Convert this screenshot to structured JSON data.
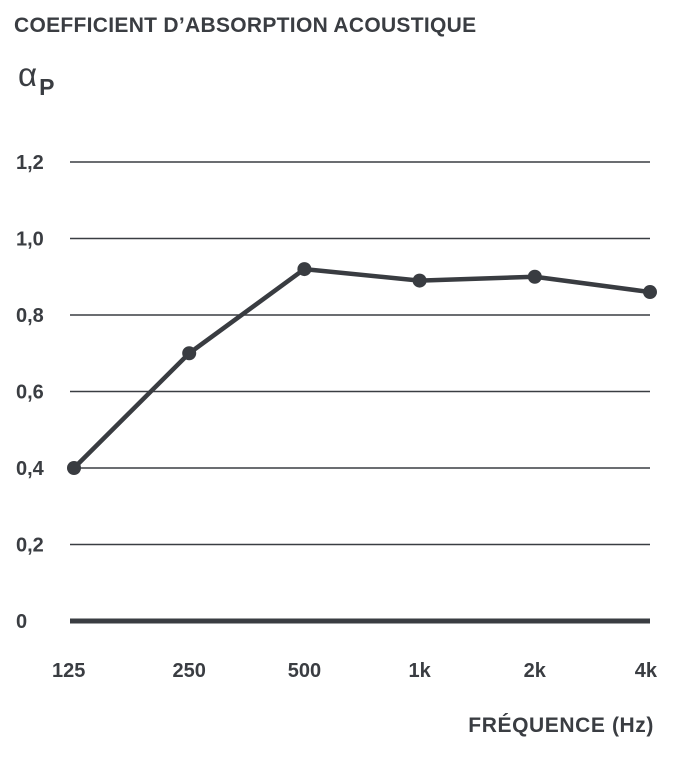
{
  "chart_data": {
    "type": "line",
    "title": "COEFFICIENT D’ABSORPTION ACOUSTIQUE",
    "ylabel": {
      "symbol": "α",
      "subscript": "P"
    },
    "xlabel": "FRÉQUENCE (Hz)",
    "categories": [
      "125",
      "250",
      "500",
      "1k",
      "2k",
      "4k"
    ],
    "series": [
      {
        "values": [
          0.4,
          0.7,
          0.92,
          0.89,
          0.9,
          0.86
        ]
      }
    ],
    "yticks": [
      {
        "value": 0,
        "label": "0"
      },
      {
        "value": 0.2,
        "label": "0,2"
      },
      {
        "value": 0.4,
        "label": "0,4"
      },
      {
        "value": 0.6,
        "label": "0,6"
      },
      {
        "value": 0.8,
        "label": "0,8"
      },
      {
        "value": 1.0,
        "label": "1,0"
      },
      {
        "value": 1.2,
        "label": "1,2"
      }
    ],
    "ylim": [
      0,
      1.2
    ],
    "grid": true,
    "legend": "none",
    "colors": {
      "line": "#393c41",
      "grid": "#3a3d42",
      "text": "#3a3d42"
    }
  }
}
